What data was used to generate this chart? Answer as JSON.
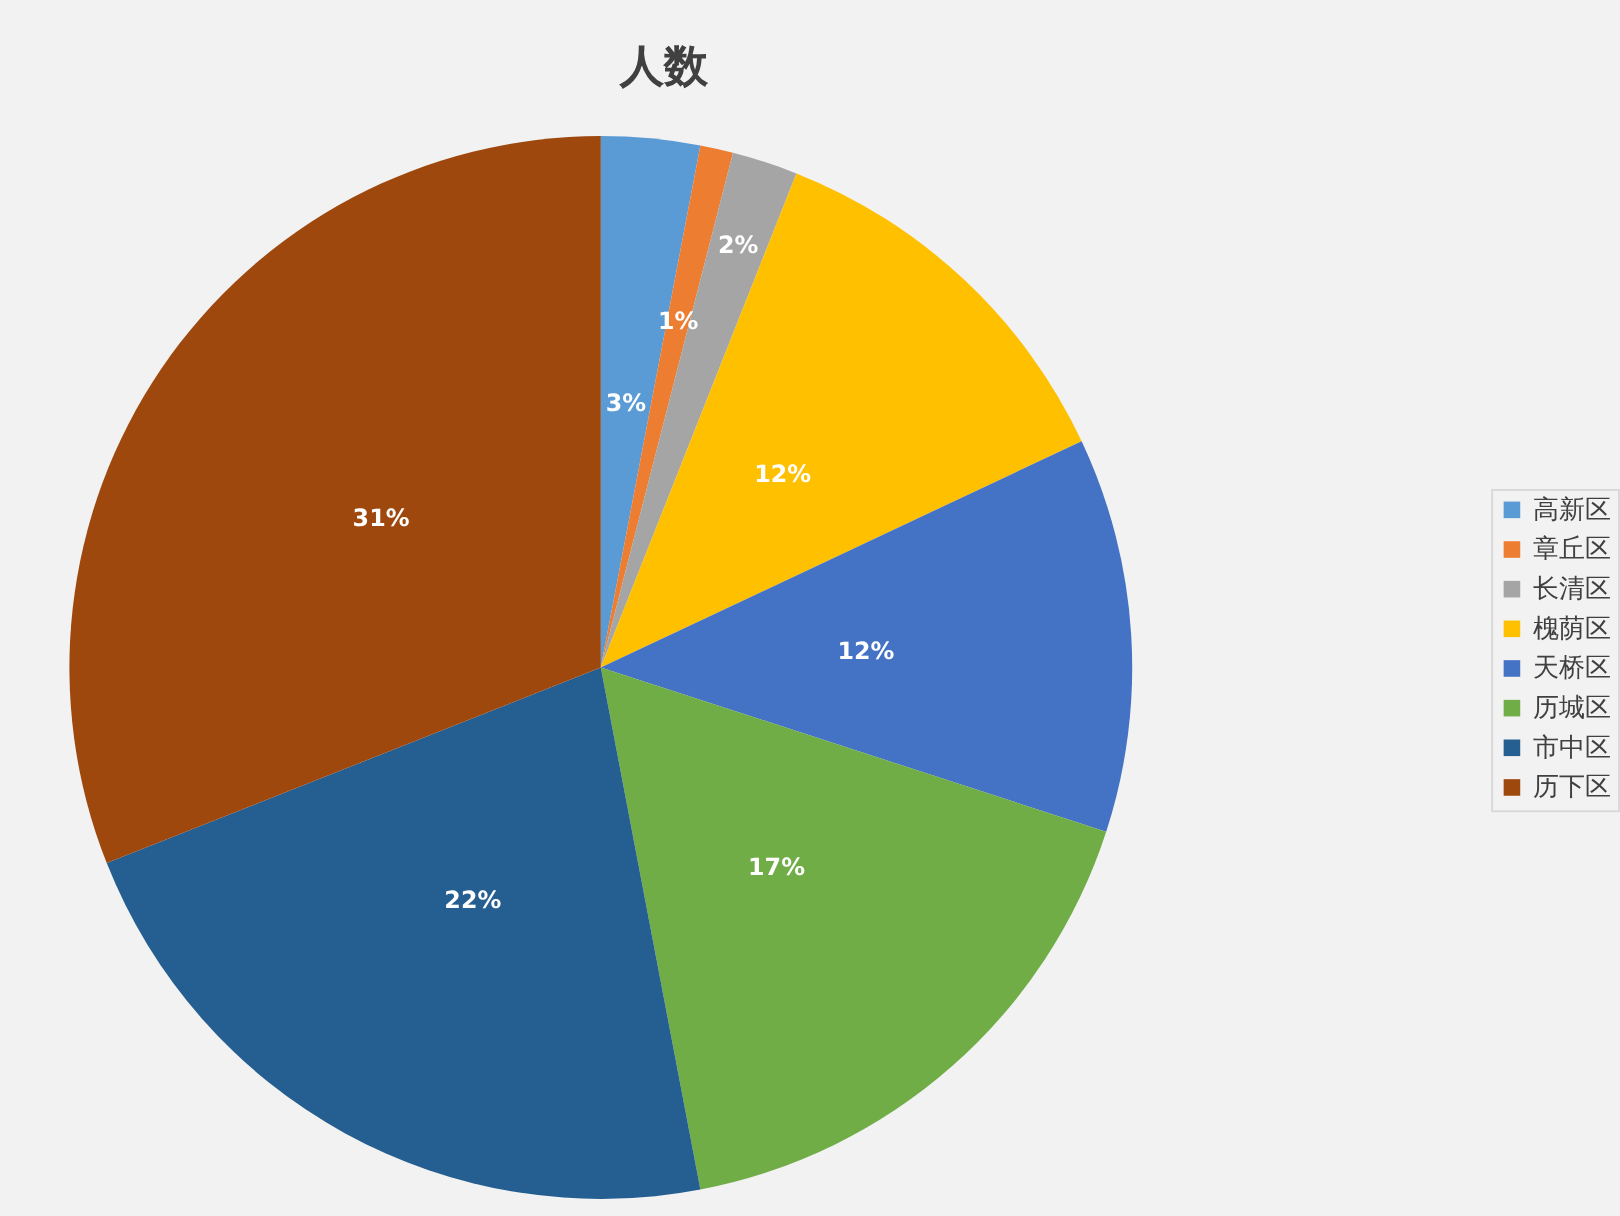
{
  "chart_data": {
    "type": "pie",
    "title": "人数",
    "categories": [
      "高新区",
      "章丘区",
      "长清区",
      "槐荫区",
      "天桥区",
      "历城区",
      "市中区",
      "历下区"
    ],
    "values": [
      3,
      1,
      2,
      12,
      12,
      17,
      22,
      31
    ],
    "colors": [
      "#5b9bd5",
      "#ed7d31",
      "#a5a5a5",
      "#ffc000",
      "#4472c4",
      "#70ad47",
      "#255e91",
      "#9e480e"
    ],
    "value_labels": [
      "3%",
      "1%",
      "2%",
      "12%",
      "12%",
      "17%",
      "22%",
      "31%"
    ],
    "legend": "right"
  }
}
